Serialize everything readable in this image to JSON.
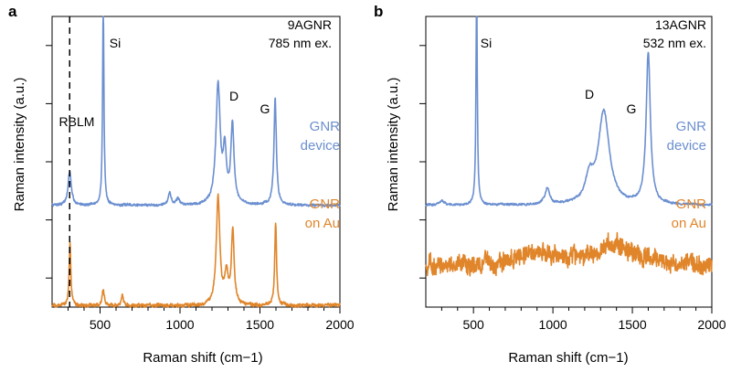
{
  "colors": {
    "device": "#6b8fd0",
    "au": "#e0852a",
    "axis": "#000000"
  },
  "chart_data": [
    {
      "panel": "a",
      "type": "line",
      "xlabel": "Raman shift (cm−1)",
      "ylabel": "Raman intensity (a.u.)",
      "xlim": [
        200,
        2000
      ],
      "ylim": [
        0,
        10
      ],
      "xticks": [
        500,
        1000,
        1500,
        2000
      ],
      "annotation_lines": [
        "9AGNR",
        "785 nm ex."
      ],
      "peak_labels": [
        {
          "text": "Si",
          "x": 535,
          "y": 8.9
        },
        {
          "text": "RBLM",
          "x": 295,
          "y": 5.75
        },
        {
          "text": "D",
          "x": 1320,
          "y": 6.85
        },
        {
          "text": "G",
          "x": 1545,
          "y": 6.35
        }
      ],
      "dashed_line_x": 310,
      "series": [
        {
          "name": "GNR device",
          "label_lines": [
            "GNR",
            "device"
          ],
          "color_key": "device",
          "baseline": 3.5,
          "noise": 0.06,
          "peaks": [
            {
              "x": 310,
              "h": 1.15,
              "w": 12
            },
            {
              "x": 520,
              "h": 7.2,
              "w": 5
            },
            {
              "x": 935,
              "h": 0.45,
              "w": 10
            },
            {
              "x": 985,
              "h": 0.2,
              "w": 12
            },
            {
              "x": 1238,
              "h": 4.1,
              "w": 16
            },
            {
              "x": 1280,
              "h": 1.7,
              "w": 12
            },
            {
              "x": 1328,
              "h": 2.7,
              "w": 12
            },
            {
              "x": 1595,
              "h": 3.7,
              "w": 9
            }
          ]
        },
        {
          "name": "GNR on Au",
          "label_lines": [
            "GNR",
            "on Au"
          ],
          "color_key": "au",
          "baseline": 0.05,
          "noise": 0.09,
          "peaks": [
            {
              "x": 312,
              "h": 2.2,
              "w": 6
            },
            {
              "x": 520,
              "h": 0.55,
              "w": 8
            },
            {
              "x": 640,
              "h": 0.35,
              "w": 8
            },
            {
              "x": 1238,
              "h": 3.7,
              "w": 13
            },
            {
              "x": 1290,
              "h": 1.0,
              "w": 14
            },
            {
              "x": 1330,
              "h": 2.5,
              "w": 10
            },
            {
              "x": 1598,
              "h": 2.85,
              "w": 7
            }
          ]
        }
      ]
    },
    {
      "panel": "b",
      "type": "line",
      "xlabel": "Raman shift (cm−1)",
      "ylabel": "Raman intensity (a.u.)",
      "xlim": [
        200,
        2000
      ],
      "ylim": [
        0,
        10
      ],
      "xticks": [
        500,
        1000,
        1500,
        2000
      ],
      "annotation_lines": [
        "13AGNR",
        "532 nm ex."
      ],
      "peak_labels": [
        {
          "text": "Si",
          "x": 535,
          "y": 8.9
        },
        {
          "text": "D",
          "x": 1265,
          "y": 6.8
        },
        {
          "text": "G",
          "x": 1530,
          "y": 6.3
        }
      ],
      "dashed_line_x": null,
      "series": [
        {
          "name": "GNR device",
          "label_lines": [
            "GNR",
            "device"
          ],
          "color_key": "device",
          "baseline": 3.5,
          "noise": 0.05,
          "peaks": [
            {
              "x": 300,
              "h": 0.15,
              "w": 20
            },
            {
              "x": 520,
              "h": 7.5,
              "w": 5
            },
            {
              "x": 965,
              "h": 0.55,
              "w": 18
            },
            {
              "x": 1230,
              "h": 0.8,
              "w": 30
            },
            {
              "x": 1320,
              "h": 3.2,
              "w": 42
            },
            {
              "x": 1600,
              "h": 5.2,
              "w": 16
            }
          ]
        },
        {
          "name": "GNR on Au",
          "label_lines": [
            "GNR",
            "on Au"
          ],
          "color_key": "au",
          "baseline": 1.4,
          "noise": 0.45,
          "peaks": [
            {
              "x": 900,
              "h": 0.4,
              "w": 150
            },
            {
              "x": 1400,
              "h": 0.7,
              "w": 180
            }
          ]
        }
      ]
    }
  ]
}
